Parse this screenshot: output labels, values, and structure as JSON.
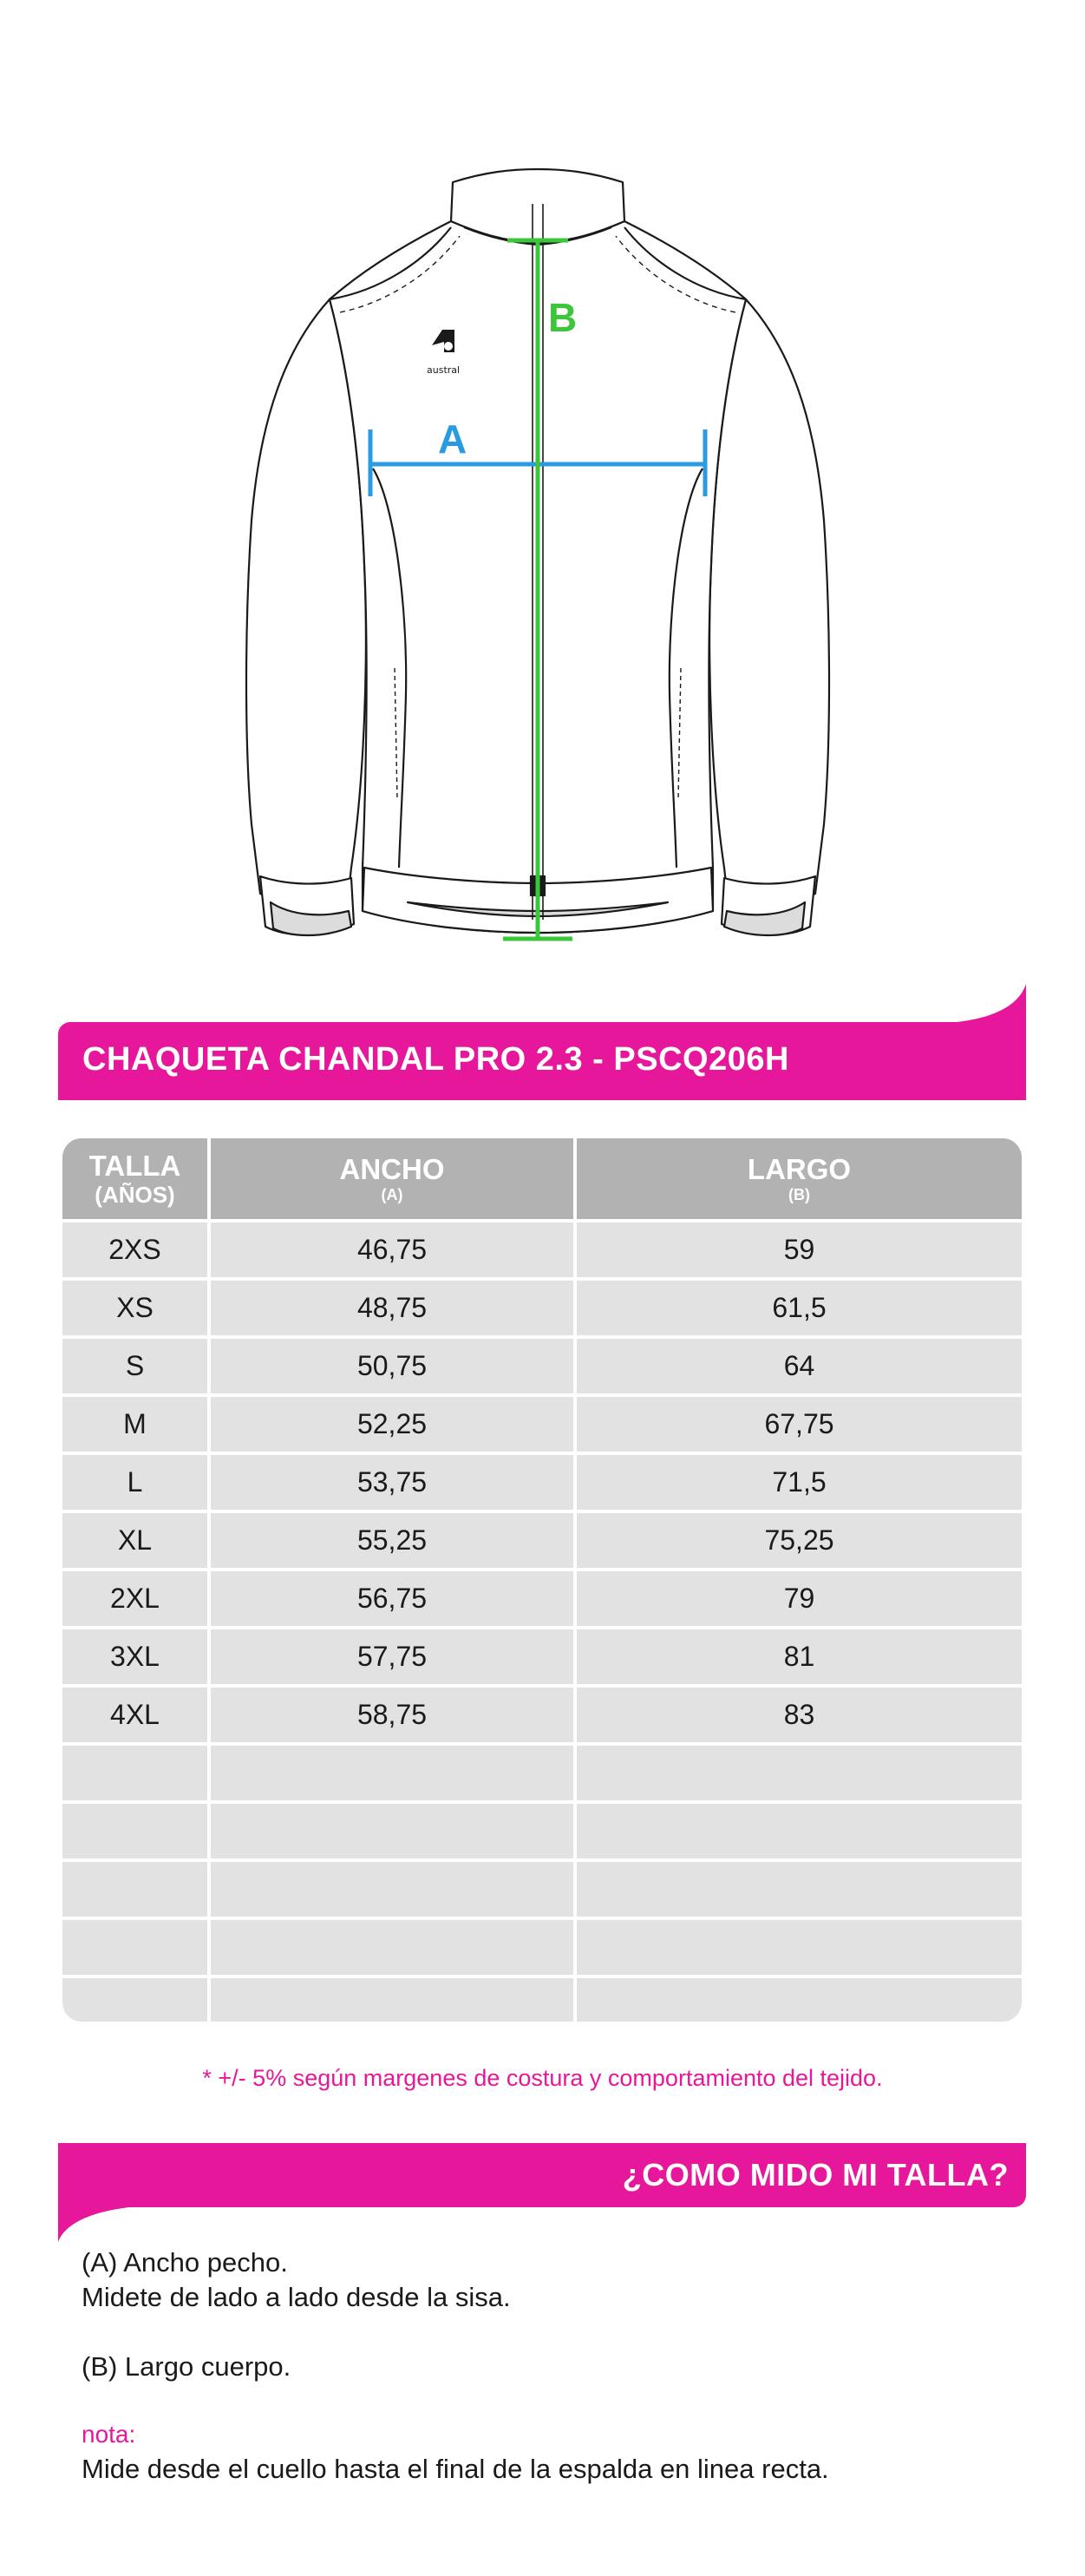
{
  "illustration": {
    "brand_logo_text": "austral",
    "label_a": "A",
    "label_b": "B",
    "color_a": "#2a9be0",
    "color_b": "#3cc63a",
    "icon": "jacket-illustration"
  },
  "title": "CHAQUETA CHANDAL PRO 2.3 - PSCQ206H",
  "table": {
    "headers": [
      {
        "main": "TALLA",
        "sub": "(AÑOS)"
      },
      {
        "main": "ANCHO",
        "sub": "(A)"
      },
      {
        "main": "LARGO",
        "sub": "(B)"
      }
    ],
    "rows": [
      [
        "2XS",
        "46,75",
        "59"
      ],
      [
        "XS",
        "48,75",
        "61,5"
      ],
      [
        "S",
        "50,75",
        "64"
      ],
      [
        "M",
        "52,25",
        "67,75"
      ],
      [
        "L",
        "53,75",
        "71,5"
      ],
      [
        "XL",
        "55,25",
        "75,25"
      ],
      [
        "2XL",
        "56,75",
        "79"
      ],
      [
        "3XL",
        "57,75",
        "81"
      ],
      [
        "4XL",
        "58,75",
        "83"
      ],
      [
        "",
        "",
        ""
      ],
      [
        "",
        "",
        ""
      ],
      [
        "",
        "",
        ""
      ],
      [
        "",
        "",
        ""
      ],
      [
        "",
        "",
        ""
      ]
    ]
  },
  "footnote": "* +/- 5% según margenes de costura y comportamiento del tejido.",
  "how_to": {
    "heading": "¿COMO MIDO MI TALLA?",
    "a_label": "(A) Ancho pecho.",
    "a_desc": "Midete  de lado a lado desde la sisa.",
    "b_label": "(B) Largo cuerpo.",
    "note_label": "nota:",
    "note_text": "Mide desde el cuello hasta el final de la espalda en linea recta."
  },
  "colors": {
    "accent": "#e6179a",
    "header_bg": "#b2b2b2",
    "row_bg": "#e2e2e2"
  }
}
